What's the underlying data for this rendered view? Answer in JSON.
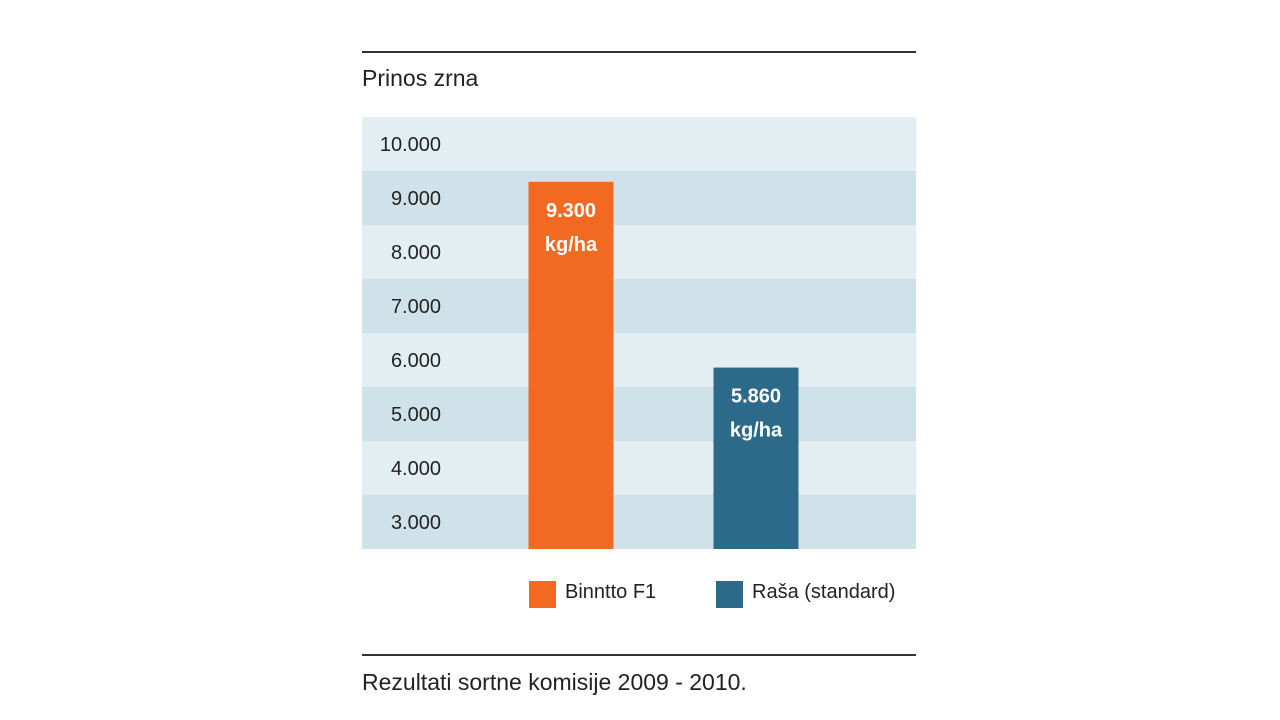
{
  "chart_data": {
    "type": "bar",
    "title": "Prinos zrna",
    "caption": "Rezultati sortne komisije 2009 - 2010.",
    "categories": [
      "Binntto F1",
      "Raša (standard)"
    ],
    "values": [
      9300,
      5860
    ],
    "value_labels": [
      [
        "9.300",
        "kg/ha"
      ],
      [
        "5.860",
        "kg/ha"
      ]
    ],
    "colors": [
      "#f26a21",
      "#2d6a8a"
    ],
    "ylim": [
      2500,
      10500
    ],
    "yticks": [
      10000,
      9000,
      8000,
      7000,
      6000,
      5000,
      4000,
      3000
    ],
    "ytick_labels": [
      "10.000",
      "9.000",
      "8.000",
      "7.000",
      "6.000",
      "5.000",
      "4.000",
      "3.000"
    ],
    "band_colors": [
      "#e3eef3",
      "#d0e2e9"
    ],
    "grid": false,
    "legend_position": "bottom",
    "legend": [
      {
        "label": "Binntto F1",
        "color": "#f26a21"
      },
      {
        "label": "Raša (standard)",
        "color": "#2d6a8a"
      }
    ]
  }
}
